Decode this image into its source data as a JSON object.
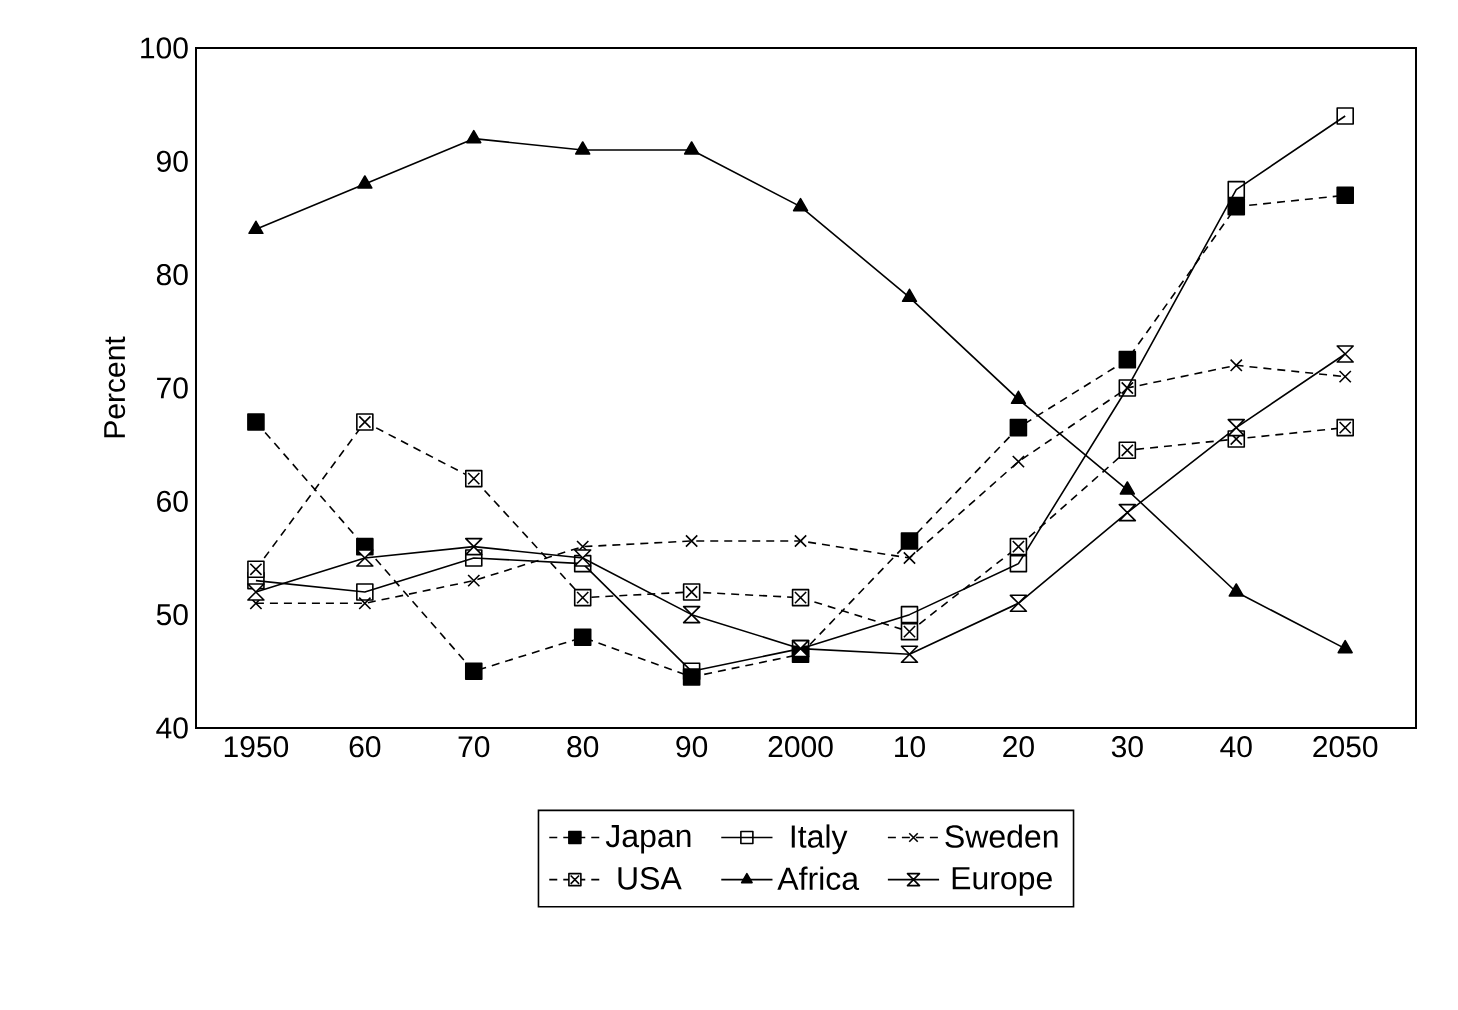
{
  "chart_data": {
    "type": "line",
    "ylabel": "Percent",
    "categories": [
      "1950",
      "60",
      "70",
      "80",
      "90",
      "2000",
      "10",
      "20",
      "30",
      "40",
      "2050"
    ],
    "ylim": [
      40,
      100
    ],
    "yticks": [
      40,
      50,
      60,
      70,
      80,
      90,
      100
    ],
    "legend": "bottom",
    "series": [
      {
        "name": "Japan",
        "color": "#000000",
        "marker": "square",
        "line_style": "dashed",
        "values": [
          67,
          56,
          45,
          48,
          44.5,
          46.5,
          56.5,
          66.5,
          72.5,
          86,
          87
        ]
      },
      {
        "name": "Italy",
        "color": "#000000",
        "marker": "square",
        "line_style": "solid",
        "values": [
          53,
          52,
          55,
          54.5,
          45,
          47,
          50,
          54.5,
          70,
          87.5,
          94
        ]
      },
      {
        "name": "Sweden",
        "color": "#000000",
        "marker": "cross",
        "line_style": "dashed",
        "values": [
          51,
          51,
          53,
          56,
          56.5,
          56.5,
          55,
          63.5,
          70,
          72,
          71
        ]
      },
      {
        "name": "USA",
        "color": "#000000",
        "marker": "cross",
        "line_style": "dashed",
        "values": [
          54,
          67,
          62,
          51.5,
          52,
          51.5,
          48.5,
          56,
          64.5,
          65.5,
          66.5
        ]
      },
      {
        "name": "Africa",
        "color": "#000000",
        "marker": "triangle",
        "line_style": "solid",
        "values": [
          84,
          88,
          92,
          91,
          91,
          86,
          78,
          69,
          61,
          52,
          47
        ]
      },
      {
        "name": "Europe",
        "color": "#000000",
        "marker": "diamond",
        "line_style": "solid",
        "values": [
          52,
          55,
          56,
          55,
          50,
          47,
          46.5,
          51,
          59,
          66.5,
          73
        ]
      }
    ]
  }
}
